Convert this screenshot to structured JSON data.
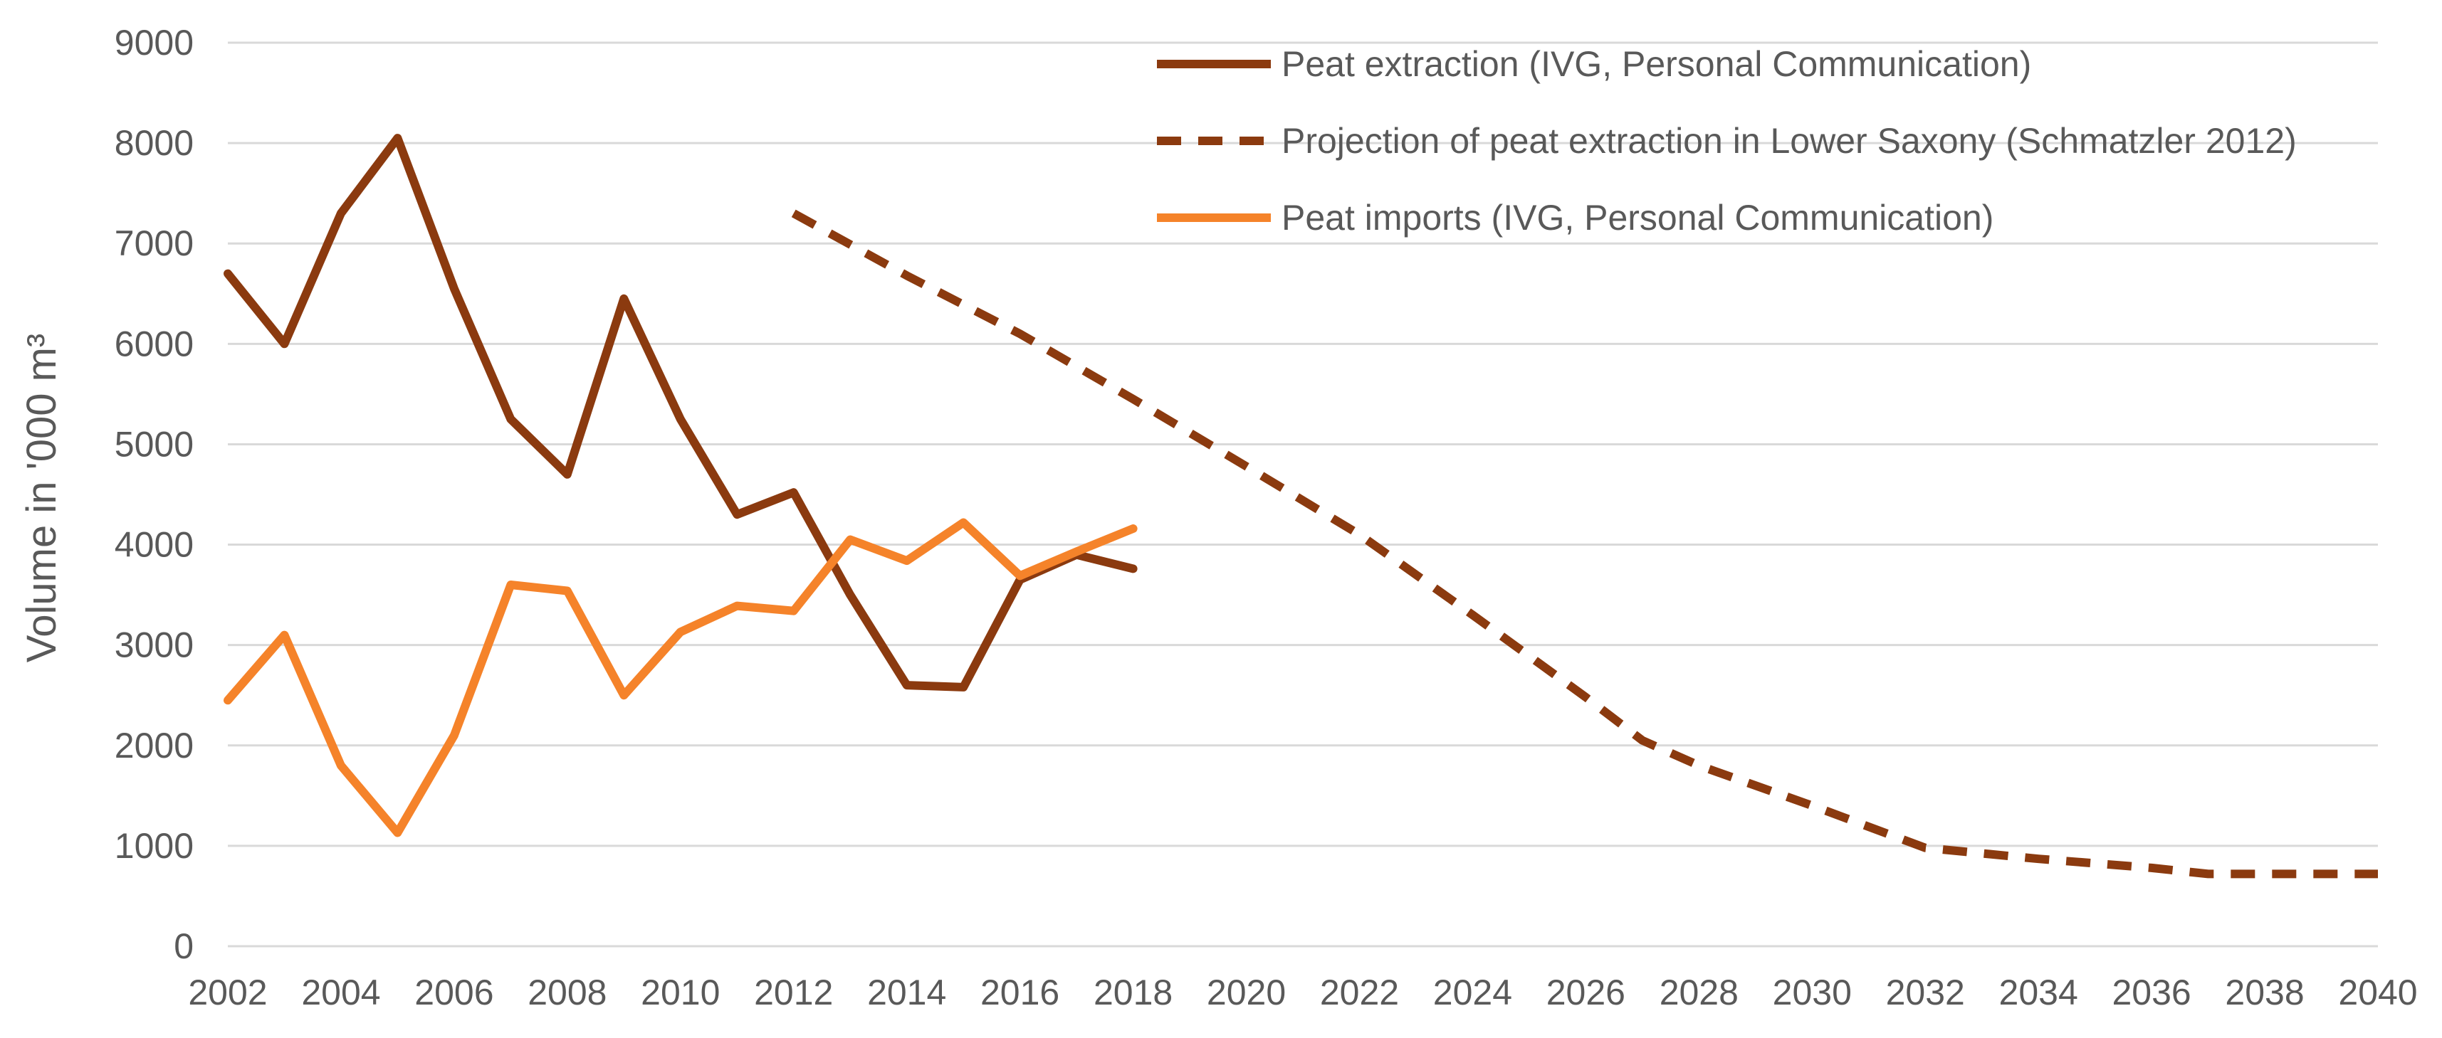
{
  "chart_data": {
    "type": "line",
    "title": "",
    "xlabel": "",
    "ylabel": "Volume in '000 m³",
    "ylim": [
      0,
      9000
    ],
    "yticks": [
      0,
      1000,
      2000,
      3000,
      4000,
      5000,
      6000,
      7000,
      8000,
      9000
    ],
    "xlim": [
      2002,
      2040
    ],
    "xticks": [
      2002,
      2004,
      2006,
      2008,
      2010,
      2012,
      2014,
      2016,
      2018,
      2020,
      2022,
      2024,
      2026,
      2028,
      2030,
      2032,
      2034,
      2036,
      2038,
      2040
    ],
    "grid": "horizontal",
    "legend_position": "top-right",
    "series": [
      {
        "name": "Peat extraction (IVG, Personal Communication)",
        "color": "#8B3A0F",
        "style": "solid",
        "x": [
          2002,
          2003,
          2004,
          2005,
          2006,
          2007,
          2008,
          2009,
          2010,
          2011,
          2012,
          2013,
          2014,
          2015,
          2016,
          2017,
          2018
        ],
        "values": [
          6700,
          6000,
          7300,
          8050,
          6550,
          5250,
          4700,
          6450,
          5250,
          4300,
          4520,
          3500,
          2600,
          2580,
          3650,
          3900,
          3760
        ]
      },
      {
        "name": "Projection of peat extraction in Lower Saxony (Schmatzler 2012)",
        "color": "#8B3A0F",
        "style": "dashed",
        "x": [
          2012,
          2014,
          2016,
          2018,
          2020,
          2022,
          2024,
          2026,
          2027,
          2028,
          2030,
          2032,
          2034,
          2036,
          2037,
          2038,
          2040
        ],
        "values": [
          7300,
          6680,
          6100,
          5450,
          4780,
          4100,
          3300,
          2480,
          2050,
          1800,
          1400,
          980,
          870,
          780,
          720,
          720,
          720
        ]
      },
      {
        "name": "Peat imports (IVG, Personal Communication)",
        "color": "#F5832A",
        "style": "solid",
        "x": [
          2002,
          2003,
          2004,
          2005,
          2006,
          2007,
          2008,
          2009,
          2010,
          2011,
          2012,
          2013,
          2014,
          2015,
          2016,
          2017,
          2018
        ],
        "values": [
          2450,
          3100,
          1800,
          1130,
          2100,
          3600,
          3540,
          2500,
          3130,
          3390,
          3340,
          4050,
          3840,
          4220,
          3690,
          3930,
          4160
        ]
      }
    ]
  }
}
